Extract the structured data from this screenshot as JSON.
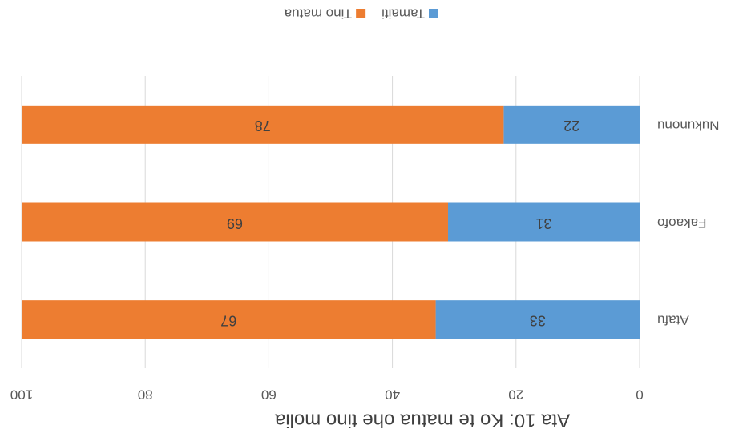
{
  "chart_data": {
    "type": "stacked_bar_horizontal",
    "title": "Ata 10: Ko te matua ohe tino molia",
    "categories": [
      "Atafu",
      "Fakaofo",
      "Nukunonu"
    ],
    "series": [
      {
        "name": "Tamaiti",
        "color": "#5b9bd5",
        "values": [
          33,
          31,
          22
        ]
      },
      {
        "name": "Tino matua",
        "color": "#ed7d31",
        "values": [
          67,
          69,
          78
        ]
      }
    ],
    "xlim": [
      0,
      100
    ],
    "xticks": [
      0,
      20,
      40,
      60,
      80,
      100
    ],
    "grid": true,
    "legend": "bottom"
  }
}
